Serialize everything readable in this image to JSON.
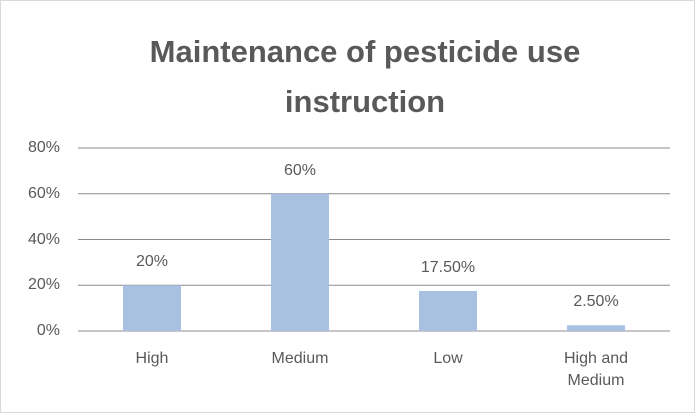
{
  "chart_data": {
    "type": "bar",
    "title": "Maintenance of pesticide use instruction",
    "categories": [
      "High",
      "Medium",
      "Low",
      "High and Medium"
    ],
    "values": [
      20,
      60,
      17.5,
      2.5
    ],
    "value_labels": [
      "20%",
      "60%",
      "17.50%",
      "2.50%"
    ],
    "color": "#a9c1e0",
    "ylim": [
      0,
      80
    ],
    "yticks": [
      {
        "value": 0,
        "label": "0%"
      },
      {
        "value": 20,
        "label": "20%"
      },
      {
        "value": 40,
        "label": "40%"
      },
      {
        "value": 60,
        "label": "60%"
      },
      {
        "value": 80,
        "label": "80%"
      }
    ],
    "grid": true
  }
}
